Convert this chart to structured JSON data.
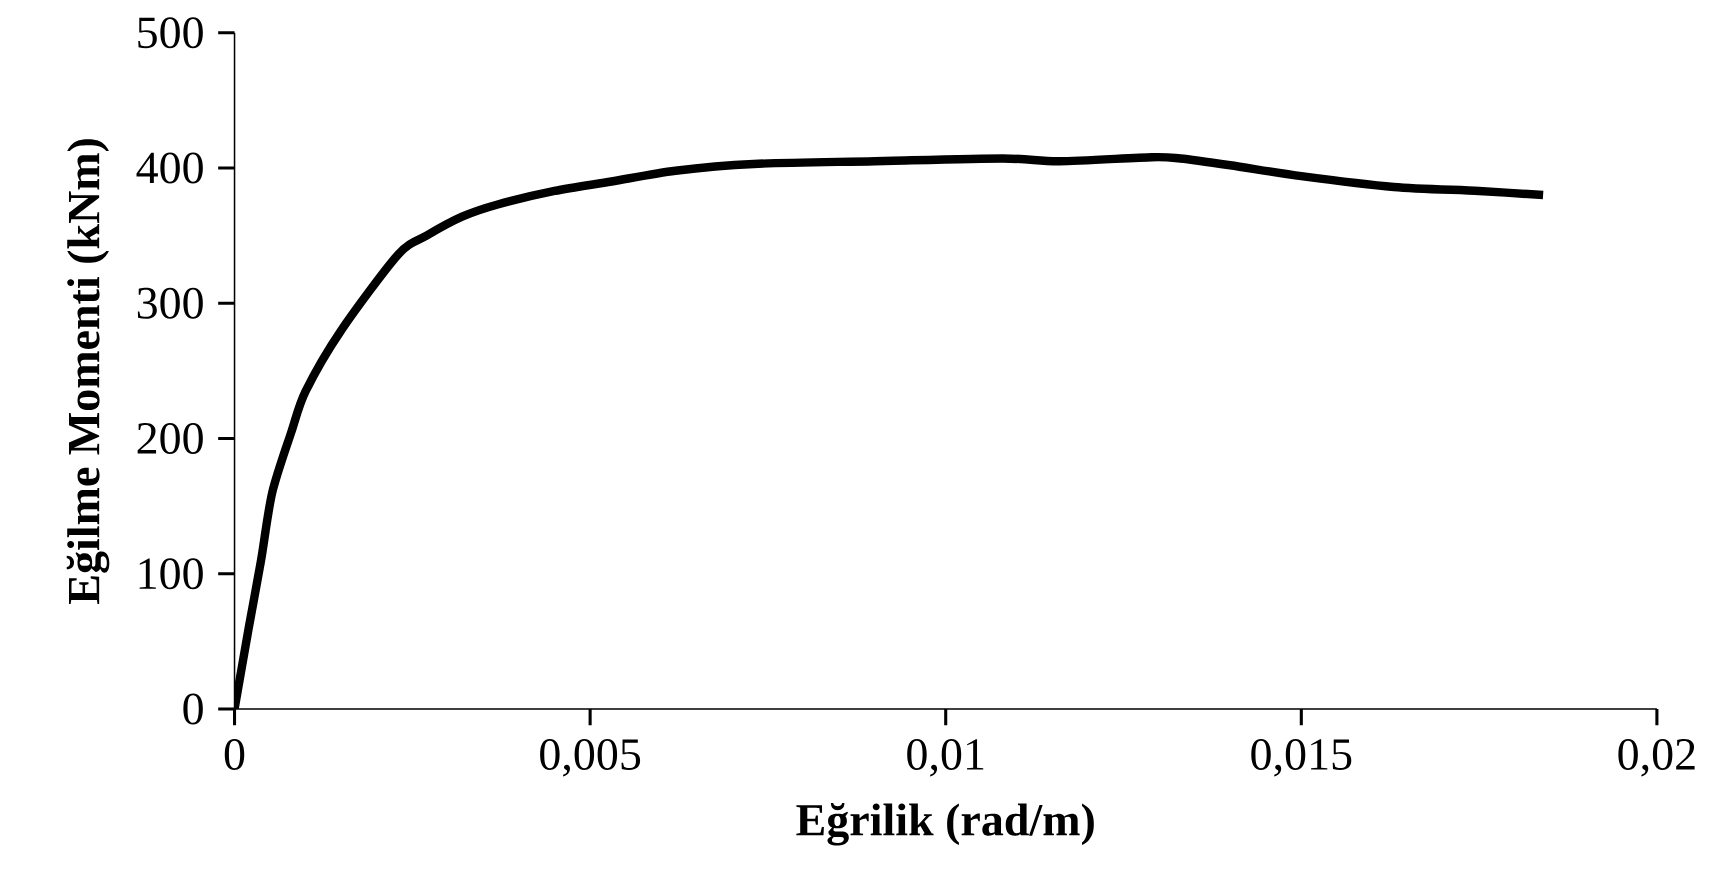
{
  "chart_data": {
    "type": "line",
    "xlabel": "Eğrilik (rad/m)",
    "ylabel": "Eğilme Momenti (kNm)",
    "xlim": [
      0,
      0.02
    ],
    "ylim": [
      0,
      500
    ],
    "xticks": [
      0,
      {
        "value": 0.005,
        "label": "0,005"
      },
      {
        "value": 0.01,
        "label": "0,01"
      },
      {
        "value": 0.015,
        "label": "0,015"
      },
      {
        "value": 0.02,
        "label": "0,02"
      }
    ],
    "yticks": [
      0,
      100,
      200,
      300,
      400,
      500
    ],
    "series": [
      {
        "color": "#000000",
        "x": [
          0,
          0.0002,
          0.00037,
          0.00053,
          0.0008,
          0.001,
          0.0015,
          0.0023,
          0.0027,
          0.0032,
          0.0037,
          0.0045,
          0.0053,
          0.0062,
          0.0073,
          0.009,
          0.0108,
          0.0116,
          0.0129,
          0.0133,
          0.014,
          0.015,
          0.0163,
          0.0175,
          0.0184
        ],
        "values": [
          0,
          60,
          109,
          160,
          205,
          235,
          280,
          336,
          350,
          364,
          373,
          383,
          390,
          398,
          403,
          405,
          407,
          405,
          408,
          407,
          402,
          394,
          386,
          383,
          380
        ]
      }
    ],
    "grid": false,
    "marker": "none",
    "line_style": "solid"
  }
}
